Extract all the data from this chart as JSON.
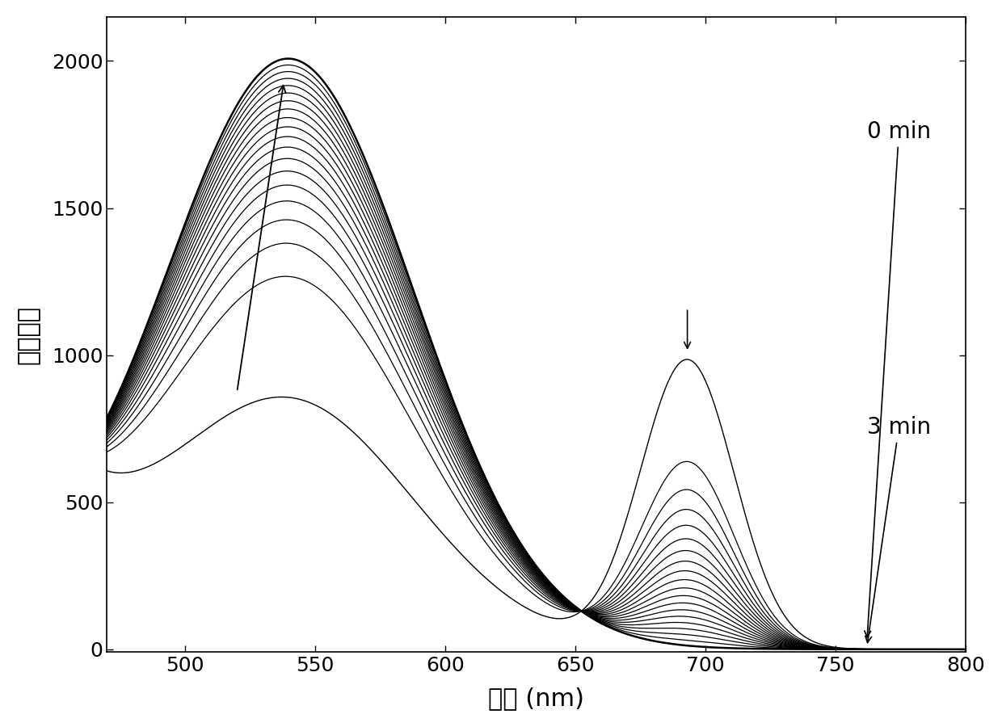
{
  "xlabel": "波长 (nm)",
  "ylabel": "荧光强度",
  "xlim": [
    470,
    800
  ],
  "ylim": [
    -10,
    2150
  ],
  "xticks": [
    500,
    550,
    600,
    650,
    700,
    750,
    800
  ],
  "yticks": [
    0,
    500,
    1000,
    1500,
    2000
  ],
  "background_color": "#ffffff",
  "line_color": "#000000",
  "num_time_curves": 20,
  "fontsize_labels": 22,
  "fontsize_ticks": 18,
  "fontsize_annotations": 20,
  "peak1_mu": 540,
  "peak1_sigma": 48,
  "peak1_amp_t0": 830,
  "peak1_amp_t1": 2000,
  "peak2_mu": 693,
  "peak2_sigma": 18,
  "peak2_amp_t0": 980,
  "baseline_amp": 320,
  "baseline_decay": 28
}
